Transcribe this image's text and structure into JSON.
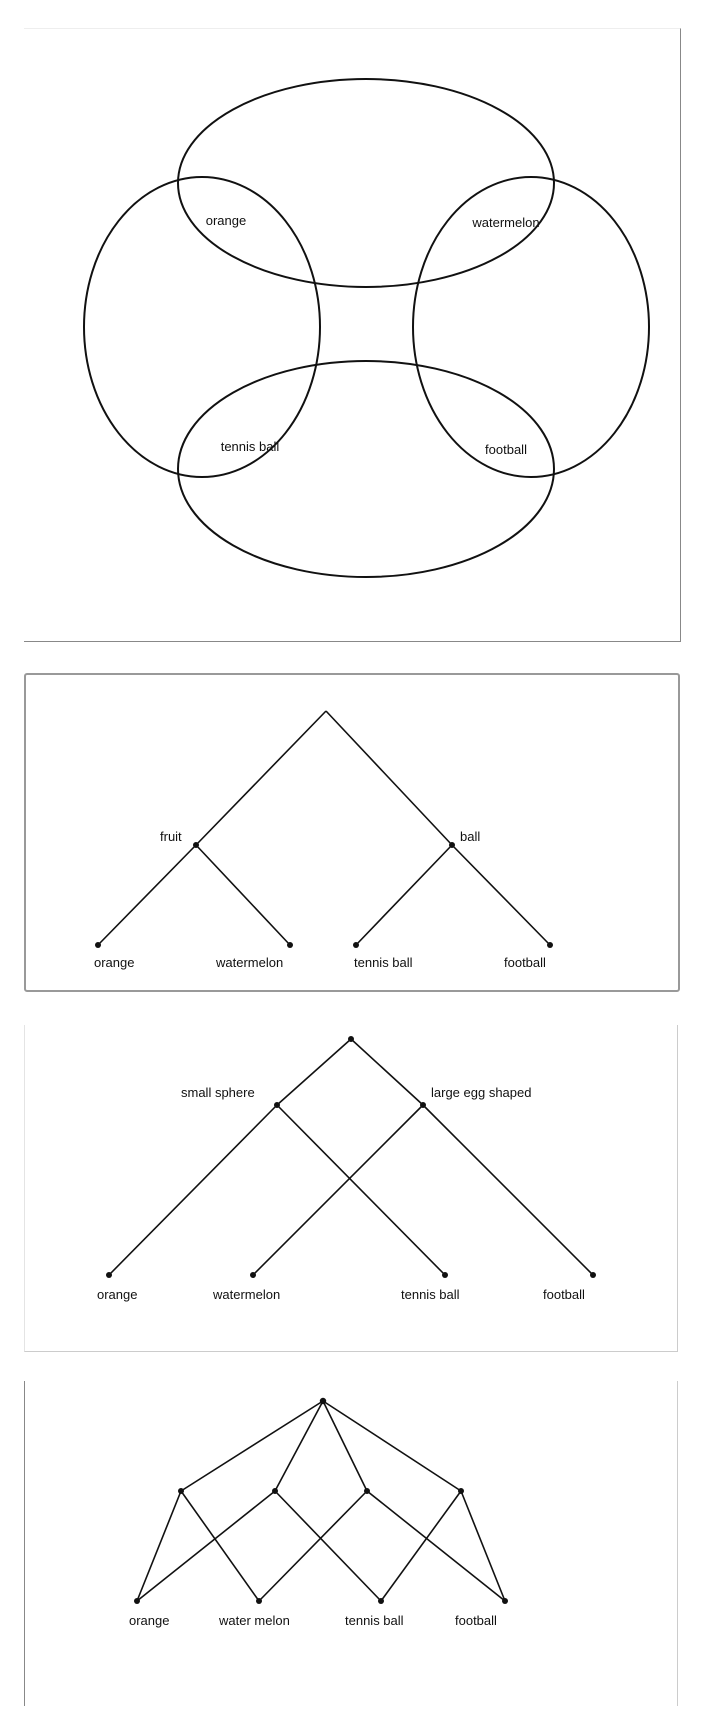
{
  "venn": {
    "labels": {
      "orange": "orange",
      "watermelon": "watermelon",
      "tennis_ball": "tennis ball",
      "football": "football"
    }
  },
  "tree_category": {
    "internal": {
      "fruit": "fruit",
      "ball": "ball"
    },
    "leaves": {
      "orange": "orange",
      "watermelon": "watermelon",
      "tennis_ball": "tennis ball",
      "football": "football"
    }
  },
  "tree_shape": {
    "internal": {
      "small_sphere": "small sphere",
      "large_egg": "large egg shaped"
    },
    "leaves": {
      "orange": "orange",
      "watermelon": "watermelon",
      "tennis_ball": "tennis ball",
      "football": "football"
    }
  },
  "lattice": {
    "leaves": {
      "orange": "orange",
      "watermelon": "water melon",
      "tennis_ball": "tennis ball",
      "football": "football"
    }
  }
}
